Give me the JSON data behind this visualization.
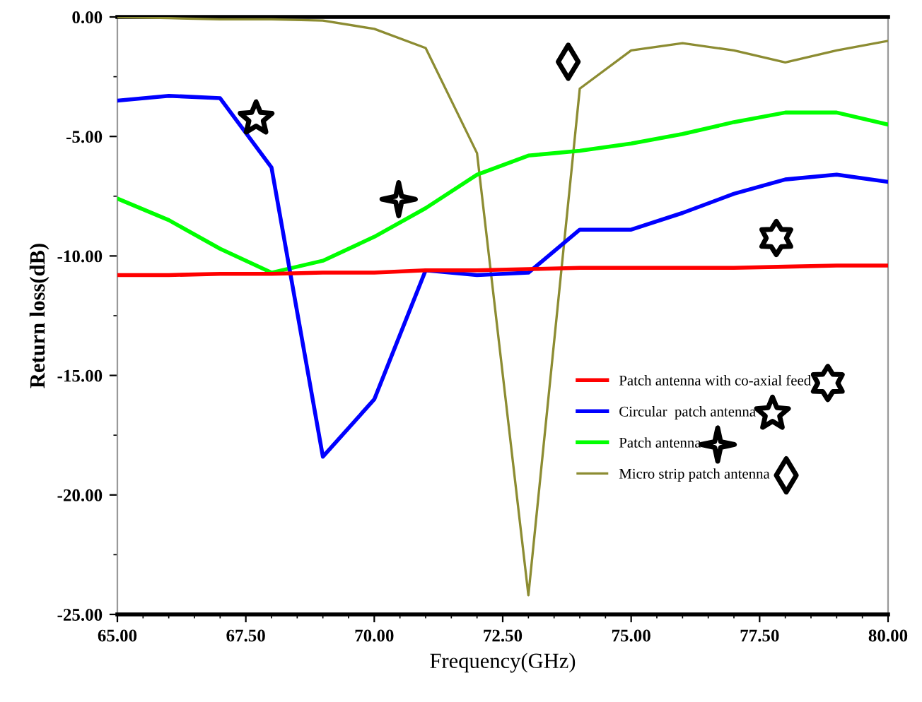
{
  "chart_data": {
    "type": "line",
    "xlabel": "Frequency(GHz)",
    "ylabel": "Return loss(dB)",
    "x": [
      65,
      66,
      67,
      68,
      69,
      70,
      71,
      72,
      73,
      74,
      75,
      76,
      77,
      78,
      79,
      80
    ],
    "series": [
      {
        "name": "Patch antenna with co-axial feed",
        "color": "#ff0000",
        "values": [
          -10.8,
          -10.8,
          -10.75,
          -10.75,
          -10.7,
          -10.7,
          -10.6,
          -10.6,
          -10.55,
          -10.5,
          -10.5,
          -10.5,
          -10.5,
          -10.45,
          -10.4,
          -10.4
        ]
      },
      {
        "name": "Circular  patch antenna",
        "color": "#0000ff",
        "values": [
          -3.5,
          -3.3,
          -3.4,
          -6.3,
          -18.4,
          -16.0,
          -10.6,
          -10.8,
          -10.7,
          -8.9,
          -8.9,
          -8.2,
          -7.4,
          -6.8,
          -6.6,
          -6.9
        ]
      },
      {
        "name": "Patch antenna",
        "color": "#00ff00",
        "values": [
          -7.6,
          -8.5,
          -9.7,
          -10.7,
          -10.2,
          -9.2,
          -8.0,
          -6.6,
          -5.8,
          -5.6,
          -5.3,
          -4.9,
          -4.4,
          -4.0,
          -4.0,
          -4.5
        ]
      },
      {
        "name": "Micro strip patch antenna",
        "color": "#8c8c32",
        "values": [
          0.0,
          -0.05,
          -0.1,
          -0.1,
          -0.15,
          -0.5,
          -1.3,
          -5.7,
          -24.2,
          -3.0,
          -1.4,
          -1.1,
          -1.4,
          -1.9,
          -1.4,
          -1.0
        ]
      }
    ],
    "xlim": [
      65,
      80
    ],
    "ylim": [
      -25,
      0
    ],
    "xticks": [
      {
        "value": 65,
        "label": "65.00"
      },
      {
        "value": 67.5,
        "label": "67.50"
      },
      {
        "value": 70,
        "label": "70.00"
      },
      {
        "value": 72.5,
        "label": "72.50"
      },
      {
        "value": 75,
        "label": "75.00"
      },
      {
        "value": 77.5,
        "label": "77.50"
      },
      {
        "value": 80,
        "label": "80.00"
      }
    ],
    "yticks": [
      {
        "value": 0,
        "label": "0.00"
      },
      {
        "value": -5,
        "label": "-5.00"
      },
      {
        "value": -10,
        "label": "-10.00"
      },
      {
        "value": -15,
        "label": "-15.00"
      },
      {
        "value": -20,
        "label": "-20.00"
      },
      {
        "value": -25,
        "label": "-25.00"
      }
    ],
    "grid": false,
    "legend": "right",
    "marker": "none",
    "line_style": "solid"
  }
}
